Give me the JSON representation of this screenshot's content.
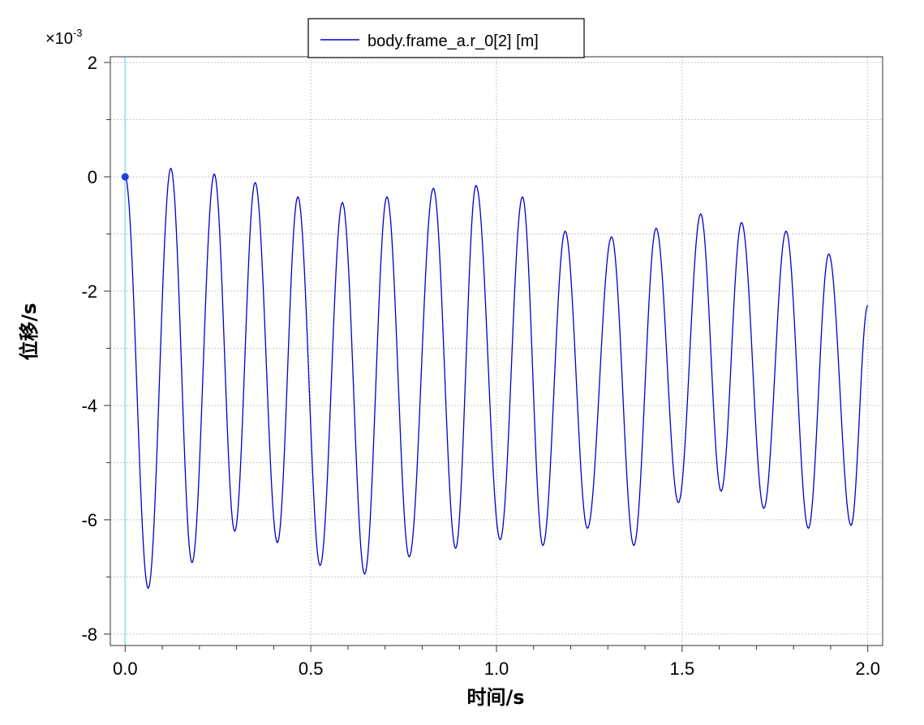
{
  "chart_data": {
    "type": "line",
    "title": "",
    "xlabel": "时间/s",
    "ylabel": "位移/s",
    "xlim": [
      -0.04,
      2.04
    ],
    "ylim": [
      -8.2,
      2.1
    ],
    "x_ticks": [
      0.0,
      0.5,
      1.0,
      1.5,
      2.0
    ],
    "x_tick_labels": [
      "0.0",
      "0.5",
      "1.0",
      "1.5",
      "2.0"
    ],
    "y_ticks": [
      2,
      0,
      -2,
      -4,
      -6,
      -8
    ],
    "y_tick_labels": [
      "2",
      "0",
      "-2",
      "-4",
      "-6",
      "-8"
    ],
    "y_multiplier": {
      "base": "×10",
      "exponent": "-3"
    },
    "grid": true,
    "legend_position": "top-center",
    "cursor_x": 0.0,
    "series": [
      {
        "name": "body.frame_a.r_0[2] [m]",
        "color": "#0000cc",
        "x": [
          0.0,
          0.062,
          0.123,
          0.18,
          0.24,
          0.295,
          0.35,
          0.41,
          0.465,
          0.525,
          0.585,
          0.645,
          0.705,
          0.765,
          0.83,
          0.89,
          0.945,
          1.01,
          1.07,
          1.125,
          1.185,
          1.245,
          1.31,
          1.37,
          1.43,
          1.49,
          1.55,
          1.605,
          1.66,
          1.72,
          1.78,
          1.84,
          1.895,
          1.955,
          2.0
        ],
        "y": [
          0.0,
          -7.2,
          0.15,
          -6.75,
          0.05,
          -6.2,
          -0.1,
          -6.4,
          -0.35,
          -6.8,
          -0.45,
          -6.95,
          -0.35,
          -6.65,
          -0.2,
          -6.5,
          -0.15,
          -6.35,
          -0.35,
          -6.45,
          -0.95,
          -6.15,
          -1.05,
          -6.45,
          -0.9,
          -5.7,
          -0.65,
          -5.5,
          -0.8,
          -5.8,
          -0.95,
          -6.15,
          -1.35,
          -6.1,
          -2.25
        ]
      }
    ],
    "marker_point": {
      "x": 0.0,
      "y": 0.0
    }
  }
}
